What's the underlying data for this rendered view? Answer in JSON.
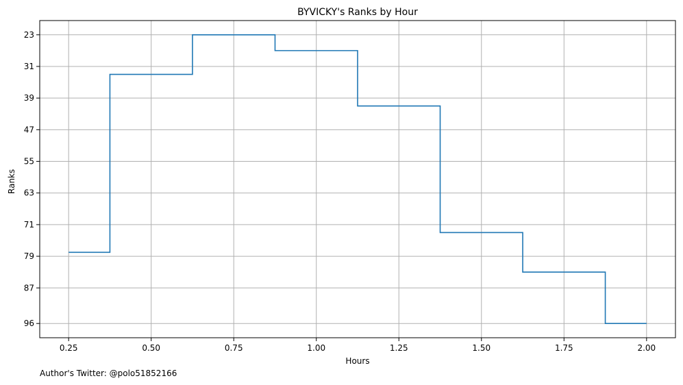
{
  "chart_data": {
    "type": "line",
    "drawstyle": "steps-mid",
    "title": "BYVICKY's Ranks by Hour",
    "xlabel": "Hours",
    "ylabel": "Ranks",
    "x": [
      0.25,
      0.5,
      0.75,
      1.0,
      1.25,
      1.5,
      1.75,
      2.0
    ],
    "series": [
      {
        "values": [
          78,
          33,
          23,
          27,
          41,
          73,
          83,
          96
        ],
        "color": "#1f77b4"
      }
    ],
    "xticks": [
      0.25,
      0.5,
      0.75,
      1.0,
      1.25,
      1.5,
      1.75,
      2.0
    ],
    "xtick_labels": [
      "0.25",
      "0.50",
      "0.75",
      "1.00",
      "1.25",
      "1.50",
      "1.75",
      "2.00"
    ],
    "yticks": [
      23,
      31,
      39,
      47,
      55,
      63,
      71,
      79,
      87,
      96
    ],
    "ytick_labels": [
      "23",
      "31",
      "39",
      "47",
      "55",
      "63",
      "71",
      "79",
      "87",
      "96"
    ],
    "xlim": [
      0.1625,
      2.0875
    ],
    "ylim": [
      99.6,
      19.4
    ],
    "y_inverted": true,
    "grid": true
  },
  "footnote": "Author's Twitter: @polo51852166"
}
